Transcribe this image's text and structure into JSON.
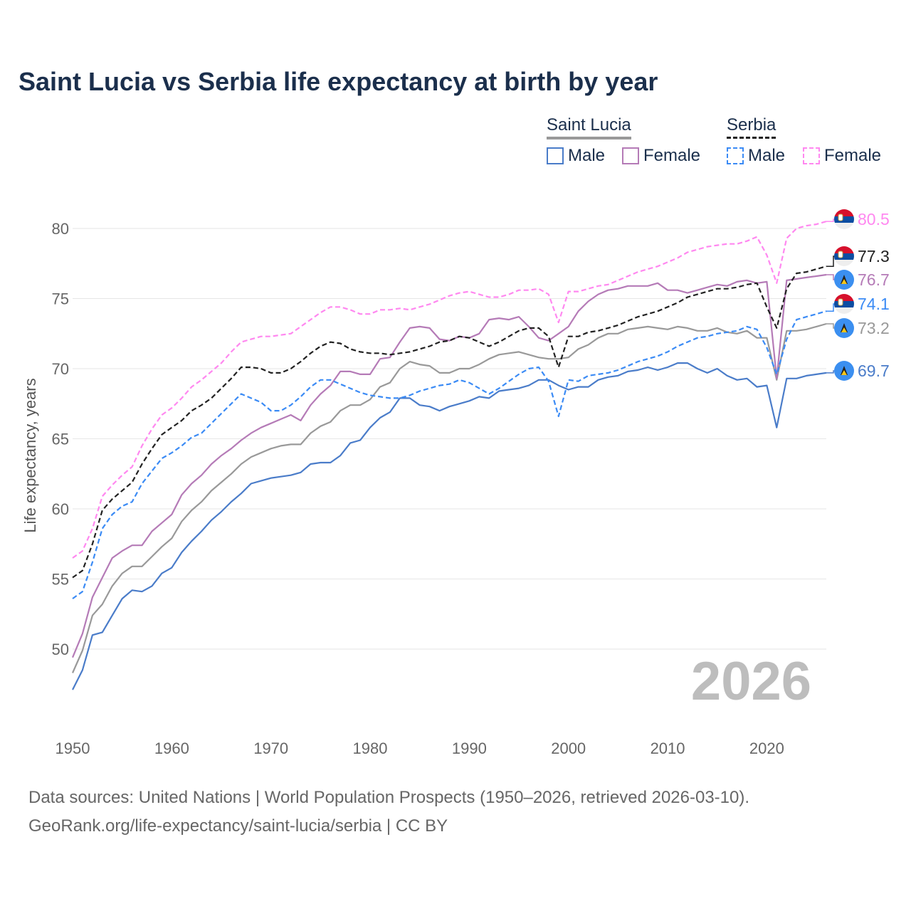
{
  "chart_data": {
    "type": "line",
    "title": "Saint Lucia vs Serbia life expectancy at birth by year",
    "xlabel": "",
    "ylabel": "Life expectancy, years",
    "xlim": [
      1950,
      2026
    ],
    "ylim": [
      45,
      82
    ],
    "x_ticks": [
      1950,
      1960,
      1970,
      1980,
      1990,
      2000,
      2010,
      2020
    ],
    "y_ticks": [
      50,
      55,
      60,
      65,
      70,
      75,
      80
    ],
    "grid": true,
    "legend_position": "top-right",
    "year_watermark": "2026",
    "legend": {
      "groups": [
        {
          "label": "Saint Lucia",
          "color": "#999999",
          "dashed": false
        },
        {
          "label": "Serbia",
          "color": "#222222",
          "dashed": true
        }
      ],
      "items": [
        {
          "label": "Male",
          "color": "#4a7cc9",
          "dashed": false
        },
        {
          "label": "Female",
          "color": "#b57bb7",
          "dashed": false
        },
        {
          "label": "Male",
          "color": "#3b8bf5",
          "dashed": true
        },
        {
          "label": "Female",
          "color": "#ff88f0",
          "dashed": true
        }
      ]
    },
    "series": [
      {
        "name": "Serbia Female",
        "country": "Serbia",
        "color": "#ff88f0",
        "dashed": true,
        "end_label": "80.5",
        "values": [
          56.5,
          57.0,
          58.6,
          60.9,
          61.7,
          62.4,
          63.0,
          64.5,
          65.7,
          66.7,
          67.2,
          67.9,
          68.7,
          69.2,
          69.8,
          70.4,
          71.2,
          71.9,
          72.1,
          72.3,
          72.3,
          72.4,
          72.5,
          73.0,
          73.5,
          74.0,
          74.4,
          74.4,
          74.2,
          73.9,
          73.9,
          74.2,
          74.2,
          74.3,
          74.2,
          74.4,
          74.6,
          74.9,
          75.2,
          75.4,
          75.5,
          75.3,
          75.1,
          75.1,
          75.3,
          75.6,
          75.6,
          75.7,
          75.3,
          73.3,
          75.5,
          75.5,
          75.7,
          75.9,
          76.0,
          76.3,
          76.6,
          76.9,
          77.1,
          77.3,
          77.6,
          77.9,
          78.3,
          78.5,
          78.7,
          78.8,
          78.9,
          78.9,
          79.1,
          79.4,
          78.1,
          76.1,
          79.3,
          80.0,
          80.2,
          80.3,
          80.5
        ]
      },
      {
        "name": "Serbia",
        "country": "Serbia",
        "color": "#222222",
        "dashed": true,
        "end_label": "77.3",
        "values": [
          55.1,
          55.6,
          57.5,
          59.9,
          60.7,
          61.3,
          61.9,
          63.2,
          64.3,
          65.3,
          65.8,
          66.3,
          67.0,
          67.4,
          67.9,
          68.6,
          69.3,
          70.1,
          70.1,
          70.0,
          69.7,
          69.7,
          70.0,
          70.5,
          71.1,
          71.6,
          71.9,
          71.8,
          71.4,
          71.2,
          71.1,
          71.1,
          71.0,
          71.1,
          71.2,
          71.4,
          71.6,
          71.9,
          72.0,
          72.3,
          72.2,
          71.9,
          71.6,
          71.9,
          72.3,
          72.7,
          72.9,
          72.9,
          72.3,
          70.1,
          72.3,
          72.3,
          72.6,
          72.7,
          72.9,
          73.1,
          73.4,
          73.7,
          73.9,
          74.1,
          74.4,
          74.7,
          75.1,
          75.3,
          75.5,
          75.7,
          75.7,
          75.8,
          76.0,
          76.1,
          74.4,
          72.9,
          75.7,
          76.8,
          76.9,
          77.1,
          77.3
        ]
      },
      {
        "name": "Saint Lucia Female",
        "country": "Saint Lucia",
        "color": "#b57bb7",
        "dashed": false,
        "end_label": "76.7",
        "values": [
          49.4,
          51.1,
          53.7,
          55.1,
          56.5,
          57.0,
          57.4,
          57.4,
          58.4,
          59.0,
          59.6,
          61.0,
          61.8,
          62.4,
          63.2,
          63.8,
          64.3,
          64.9,
          65.4,
          65.8,
          66.1,
          66.4,
          66.7,
          66.3,
          67.4,
          68.2,
          68.8,
          69.8,
          69.8,
          69.6,
          69.6,
          70.7,
          70.8,
          71.9,
          72.9,
          73.0,
          72.9,
          72.1,
          72.0,
          72.3,
          72.2,
          72.5,
          73.5,
          73.6,
          73.5,
          73.7,
          73.0,
          72.2,
          72.0,
          72.5,
          73.0,
          74.1,
          74.8,
          75.3,
          75.6,
          75.7,
          75.9,
          75.9,
          75.9,
          76.1,
          75.6,
          75.6,
          75.4,
          75.6,
          75.8,
          76.0,
          75.9,
          76.2,
          76.3,
          76.1,
          76.2,
          69.3,
          76.3,
          76.4,
          76.5,
          76.6,
          76.7
        ]
      },
      {
        "name": "Serbia Male",
        "country": "Serbia",
        "color": "#3b8bf5",
        "dashed": true,
        "end_label": "74.1",
        "values": [
          53.6,
          54.1,
          56.2,
          58.6,
          59.6,
          60.2,
          60.5,
          61.8,
          62.7,
          63.6,
          64.0,
          64.5,
          65.1,
          65.4,
          66.1,
          66.8,
          67.5,
          68.2,
          67.9,
          67.6,
          67.0,
          67.0,
          67.4,
          68.0,
          68.7,
          69.2,
          69.2,
          68.9,
          68.6,
          68.3,
          68.1,
          68.0,
          67.9,
          67.9,
          68.1,
          68.4,
          68.6,
          68.8,
          68.9,
          69.2,
          69.0,
          68.6,
          68.2,
          68.6,
          69.1,
          69.6,
          70.0,
          70.1,
          69.1,
          66.6,
          69.2,
          69.1,
          69.5,
          69.6,
          69.7,
          69.9,
          70.2,
          70.5,
          70.7,
          70.9,
          71.2,
          71.6,
          71.9,
          72.2,
          72.3,
          72.5,
          72.6,
          72.7,
          73.0,
          72.8,
          71.5,
          69.6,
          72.1,
          73.5,
          73.7,
          73.9,
          74.1
        ]
      },
      {
        "name": "Saint Lucia",
        "country": "Saint Lucia",
        "color": "#999999",
        "dashed": false,
        "end_label": "73.2",
        "values": [
          48.3,
          49.9,
          52.4,
          53.2,
          54.5,
          55.4,
          55.9,
          55.9,
          56.6,
          57.3,
          57.9,
          59.1,
          59.9,
          60.5,
          61.3,
          61.9,
          62.5,
          63.2,
          63.7,
          64.0,
          64.3,
          64.5,
          64.6,
          64.6,
          65.4,
          65.9,
          66.2,
          67.0,
          67.4,
          67.4,
          67.8,
          68.7,
          69.0,
          70.0,
          70.5,
          70.3,
          70.2,
          69.7,
          69.7,
          70.0,
          70.0,
          70.3,
          70.7,
          71.0,
          71.1,
          71.2,
          71.0,
          70.8,
          70.7,
          70.7,
          70.8,
          71.4,
          71.7,
          72.2,
          72.5,
          72.5,
          72.8,
          72.9,
          73.0,
          72.9,
          72.8,
          73.0,
          72.9,
          72.7,
          72.7,
          72.9,
          72.6,
          72.5,
          72.7,
          72.2,
          72.2,
          69.2,
          72.7,
          72.7,
          72.8,
          73.0,
          73.2
        ]
      },
      {
        "name": "Saint Lucia Male",
        "country": "Saint Lucia",
        "color": "#4a7cc9",
        "dashed": false,
        "end_label": "69.7",
        "values": [
          47.1,
          48.5,
          51.0,
          51.2,
          52.4,
          53.6,
          54.2,
          54.1,
          54.5,
          55.4,
          55.8,
          56.9,
          57.7,
          58.4,
          59.2,
          59.8,
          60.5,
          61.1,
          61.8,
          62.0,
          62.2,
          62.3,
          62.4,
          62.6,
          63.2,
          63.3,
          63.3,
          63.8,
          64.7,
          64.9,
          65.8,
          66.5,
          66.9,
          67.9,
          67.9,
          67.4,
          67.3,
          67.0,
          67.3,
          67.5,
          67.7,
          68.0,
          67.9,
          68.4,
          68.5,
          68.6,
          68.8,
          69.2,
          69.2,
          68.8,
          68.5,
          68.7,
          68.7,
          69.2,
          69.4,
          69.5,
          69.8,
          69.9,
          70.1,
          69.9,
          70.1,
          70.4,
          70.4,
          70.0,
          69.7,
          70.0,
          69.5,
          69.2,
          69.3,
          68.7,
          68.8,
          65.8,
          69.3,
          69.3,
          69.5,
          69.6,
          69.7
        ]
      }
    ]
  },
  "footer": {
    "line1": "Data sources: United Nations | World Population Prospects (1950–2026, retrieved 2026-03-10).",
    "line2": "GeoRank.org/life-expectancy/saint-lucia/serbia | CC BY"
  }
}
